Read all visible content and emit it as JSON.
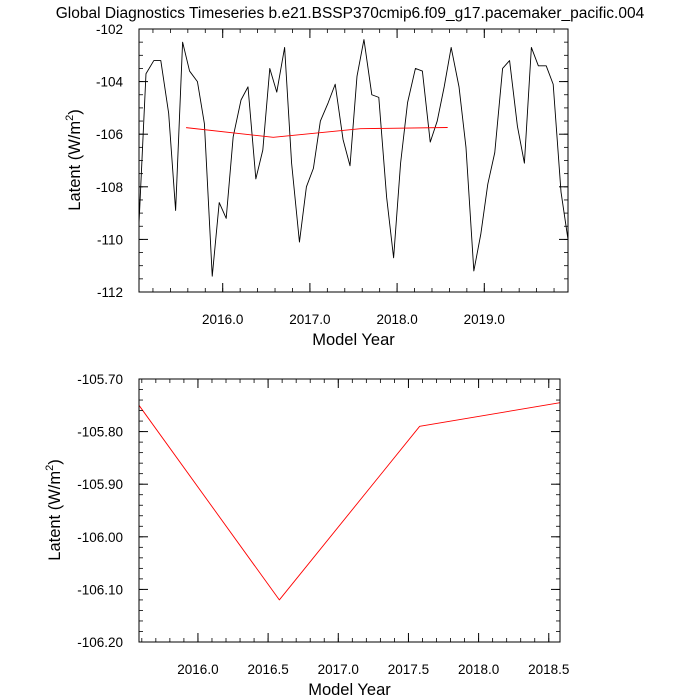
{
  "figure": {
    "title": "Global Diagnostics Timeseries b.e21.BSSP370cmip6.f09_g17.pacemaker_pacific.004"
  },
  "colors": {
    "monthly_line": "#000000",
    "annual_line": "#ff0000",
    "axis": "#000000"
  },
  "chart_data": [
    {
      "type": "line",
      "title": "",
      "xlabel": "Model Year",
      "ylabel_main": "Latent (W/m",
      "ylabel_sup": "2",
      "ylabel_tail": ")",
      "xlim": [
        2015.04,
        2019.96
      ],
      "ylim": [
        -112,
        -102
      ],
      "xticks": [
        2016.0,
        2017.0,
        2018.0,
        2019.0
      ],
      "xtick_labels": [
        "2016.0",
        "2017.0",
        "2018.0",
        "2019.0"
      ],
      "yticks": [
        -112,
        -110,
        -108,
        -106,
        -104,
        -102
      ],
      "ytick_labels": [
        "-112",
        "-110",
        "-108",
        "-106",
        "-104",
        "-102"
      ],
      "x_minor_step": 0.2,
      "y_minor_step": 0.5,
      "grid": false,
      "series": [
        {
          "color": "#000000",
          "x": [
            2015.04,
            2015.12,
            2015.21,
            2015.29,
            2015.38,
            2015.46,
            2015.54,
            2015.62,
            2015.71,
            2015.79,
            2015.88,
            2015.96,
            2016.04,
            2016.12,
            2016.21,
            2016.29,
            2016.38,
            2016.46,
            2016.54,
            2016.62,
            2016.71,
            2016.79,
            2016.88,
            2016.96,
            2017.04,
            2017.12,
            2017.21,
            2017.29,
            2017.38,
            2017.46,
            2017.54,
            2017.62,
            2017.71,
            2017.79,
            2017.88,
            2017.96,
            2018.04,
            2018.12,
            2018.21,
            2018.29,
            2018.38,
            2018.46,
            2018.54,
            2018.62,
            2018.71,
            2018.79,
            2018.88,
            2018.96,
            2019.04,
            2019.12,
            2019.21,
            2019.29,
            2019.38,
            2019.46,
            2019.54,
            2019.62,
            2019.71,
            2019.79,
            2019.88,
            2019.96
          ],
          "y": [
            -109.4,
            -103.7,
            -103.2,
            -103.2,
            -105.2,
            -108.9,
            -102.5,
            -103.6,
            -104.0,
            -105.6,
            -111.4,
            -108.6,
            -109.2,
            -106.1,
            -104.7,
            -104.2,
            -107.7,
            -106.6,
            -103.5,
            -104.4,
            -102.7,
            -107.1,
            -110.1,
            -108.0,
            -107.3,
            -105.5,
            -104.8,
            -104.1,
            -106.2,
            -107.2,
            -103.8,
            -102.4,
            -104.5,
            -104.6,
            -108.4,
            -110.7,
            -107.1,
            -104.8,
            -103.5,
            -103.6,
            -106.3,
            -105.5,
            -104.2,
            -102.7,
            -104.2,
            -106.5,
            -111.2,
            -109.8,
            -107.9,
            -106.7,
            -103.5,
            -103.2,
            -105.7,
            -107.1,
            -102.7,
            -103.4,
            -103.4,
            -104.1,
            -108.2,
            -110.0
          ]
        },
        {
          "color": "#ff0000",
          "x": [
            2015.58,
            2016.58,
            2017.58,
            2018.58
          ],
          "y": [
            -105.75,
            -106.12,
            -105.79,
            -105.745
          ]
        }
      ]
    },
    {
      "type": "line",
      "title": "",
      "xlabel": "Model Year",
      "ylabel_main": "Latent (W/m",
      "ylabel_sup": "2",
      "ylabel_tail": ")",
      "xlim": [
        2015.58,
        2018.58
      ],
      "ylim": [
        -106.2,
        -105.7
      ],
      "xticks": [
        2016.0,
        2016.5,
        2017.0,
        2017.5,
        2018.0,
        2018.5
      ],
      "xtick_labels": [
        "2016.0",
        "2016.5",
        "2017.0",
        "2017.5",
        "2018.0",
        "2018.5"
      ],
      "yticks": [
        -106.2,
        -106.1,
        -106.0,
        -105.9,
        -105.8,
        -105.7
      ],
      "ytick_labels": [
        "-106.20",
        "-106.10",
        "-106.00",
        "-105.90",
        "-105.80",
        "-105.70"
      ],
      "x_minor_step": 0.1,
      "y_minor_step": 0.02,
      "grid": false,
      "series": [
        {
          "color": "#ff0000",
          "x": [
            2015.58,
            2016.58,
            2017.58,
            2018.58
          ],
          "y": [
            -105.75,
            -106.12,
            -105.79,
            -105.745
          ]
        }
      ]
    }
  ]
}
